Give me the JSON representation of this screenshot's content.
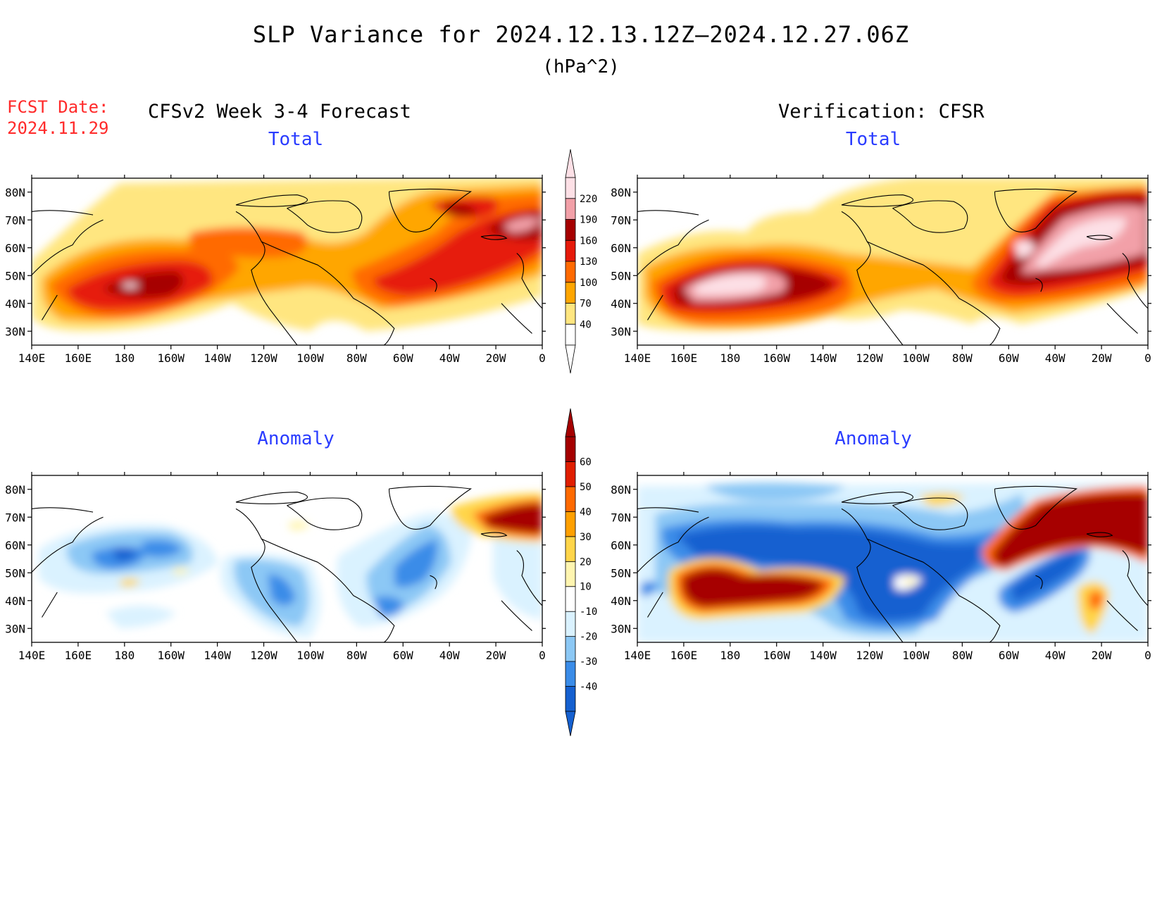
{
  "title": "SLP Variance for 2024.12.13.12Z—2024.12.27.06Z",
  "units": "(hPa^2)",
  "fcst_label": "FCST Date:",
  "fcst_date": "2024.11.29",
  "left_header": "CFSv2 Week 3-4 Forecast",
  "right_header": "Verification: CFSR",
  "panels": [
    {
      "title": "Total"
    },
    {
      "title": "Total"
    },
    {
      "title": "Anomaly"
    },
    {
      "title": "Anomaly"
    }
  ],
  "lat_labels": [
    "80N",
    "70N",
    "60N",
    "50N",
    "40N",
    "30N"
  ],
  "lon_labels": [
    "140E",
    "160E",
    "180",
    "160W",
    "140W",
    "120W",
    "100W",
    "80W",
    "60W",
    "40W",
    "20W",
    "0"
  ],
  "colorbar_total": {
    "levels": [
      "40",
      "70",
      "100",
      "130",
      "160",
      "190",
      "220"
    ],
    "colors": [
      "#ffffff",
      "#ffe680",
      "#ffa600",
      "#ff6a00",
      "#e61a0a",
      "#a60000",
      "#f2a0a8",
      "#fde0e6"
    ]
  },
  "colorbar_anomaly": {
    "levels": [
      "-40",
      "-30",
      "-20",
      "-10",
      "10",
      "20",
      "30",
      "40",
      "50",
      "60"
    ],
    "colors": [
      "#1560d0",
      "#3a8ce8",
      "#8cc8f5",
      "#daf2ff",
      "#ffffff",
      "#fff5b0",
      "#ffd54a",
      "#ffa000",
      "#ff6a00",
      "#e01e00",
      "#a50000"
    ]
  },
  "chart_data": {
    "type": "heatmap",
    "title": "SLP Variance for 2024.12.13.12Z—2024.12.27.06Z",
    "units": "hPa^2",
    "x_range": [
      "140E",
      "0"
    ],
    "y_range": [
      "25N",
      "85N"
    ],
    "panels": [
      "Forecast Total",
      "Verification Total",
      "Forecast Anomaly",
      "Verification Anomaly"
    ]
  }
}
